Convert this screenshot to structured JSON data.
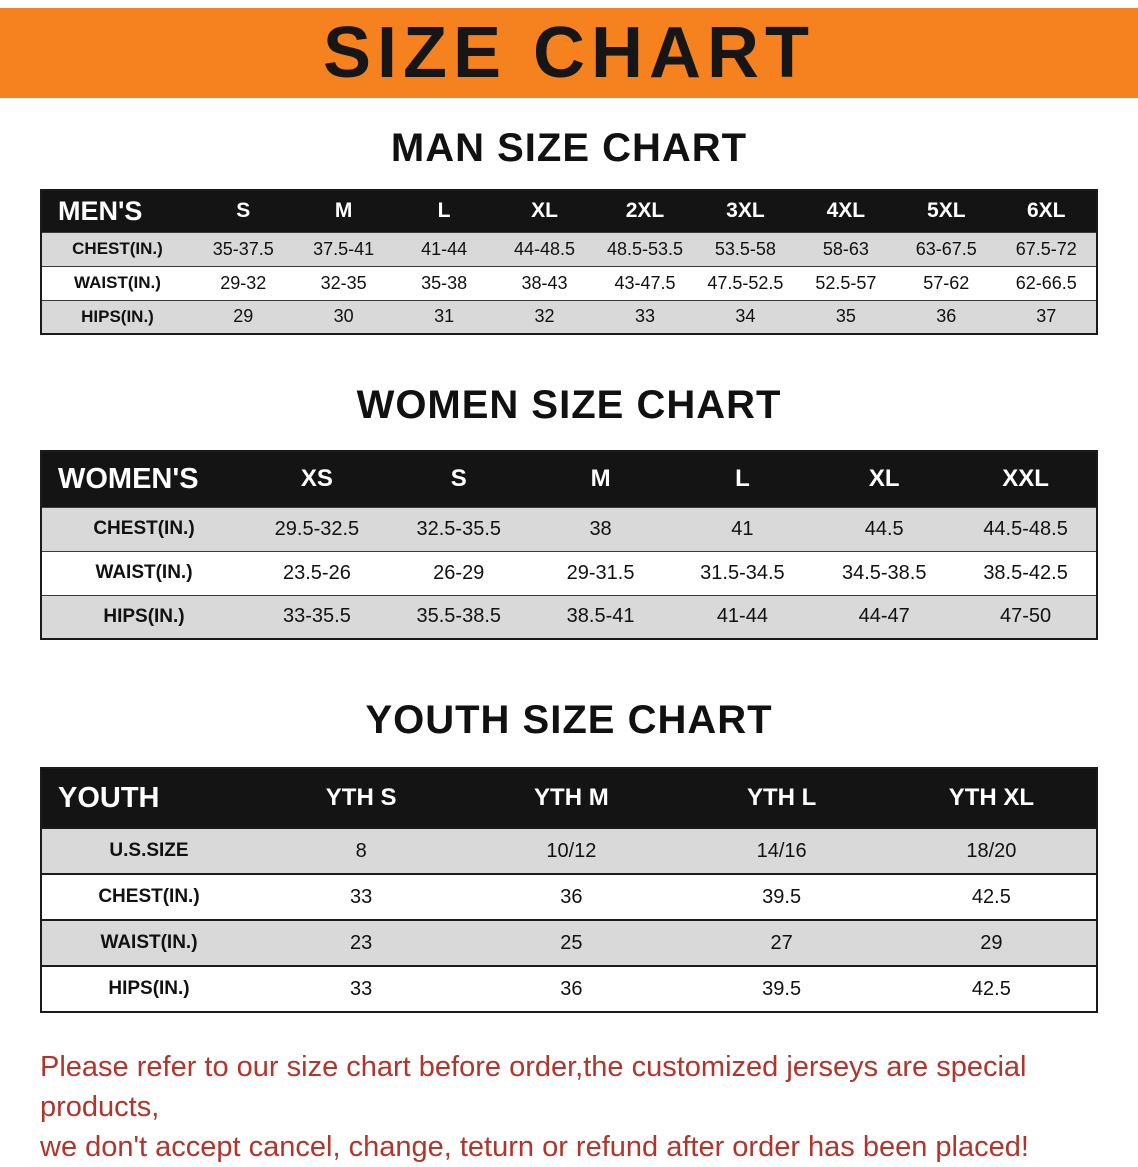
{
  "banner": {
    "title": "SIZE CHART"
  },
  "colors": {
    "banner_orange": "#F5821F",
    "table_header_black": "#141414",
    "row_gray": "#D9D9D9",
    "note_red": "#B2342B"
  },
  "sections": {
    "men": {
      "heading": "MAN SIZE CHART",
      "table": {
        "label": "MEN'S",
        "columns": [
          "S",
          "M",
          "L",
          "XL",
          "2XL",
          "3XL",
          "4XL",
          "5XL",
          "6XL"
        ],
        "rows": [
          {
            "label": "CHEST(IN.)",
            "values": [
              "35-37.5",
              "37.5-41",
              "41-44",
              "44-48.5",
              "48.5-53.5",
              "53.5-58",
              "58-63",
              "63-67.5",
              "67.5-72"
            ]
          },
          {
            "label": "WAIST(IN.)",
            "values": [
              "29-32",
              "32-35",
              "35-38",
              "38-43",
              "43-47.5",
              "47.5-52.5",
              "52.5-57",
              "57-62",
              "62-66.5"
            ]
          },
          {
            "label": "HIPS(IN.)",
            "values": [
              "29",
              "30",
              "31",
              "32",
              "33",
              "34",
              "35",
              "36",
              "37"
            ]
          }
        ]
      }
    },
    "women": {
      "heading": "WOMEN SIZE CHART",
      "table": {
        "label": "WOMEN'S",
        "columns": [
          "XS",
          "S",
          "M",
          "L",
          "XL",
          "XXL"
        ],
        "rows": [
          {
            "label": "CHEST(IN.)",
            "values": [
              "29.5-32.5",
              "32.5-35.5",
              "38",
              "41",
              "44.5",
              "44.5-48.5"
            ]
          },
          {
            "label": "WAIST(IN.)",
            "values": [
              "23.5-26",
              "26-29",
              "29-31.5",
              "31.5-34.5",
              "34.5-38.5",
              "38.5-42.5"
            ]
          },
          {
            "label": "HIPS(IN.)",
            "values": [
              "33-35.5",
              "35.5-38.5",
              "38.5-41",
              "41-44",
              "44-47",
              "47-50"
            ]
          }
        ]
      }
    },
    "youth": {
      "heading": "YOUTH SIZE CHART",
      "table": {
        "label": "YOUTH",
        "columns": [
          "YTH S",
          "YTH M",
          "YTH L",
          "YTH XL"
        ],
        "rows": [
          {
            "label": "U.S.SIZE",
            "values": [
              "8",
              "10/12",
              "14/16",
              "18/20"
            ]
          },
          {
            "label": "CHEST(IN.)",
            "values": [
              "33",
              "36",
              "39.5",
              "42.5"
            ]
          },
          {
            "label": "WAIST(IN.)",
            "values": [
              "23",
              "25",
              "27",
              "29"
            ]
          },
          {
            "label": "HIPS(IN.)",
            "values": [
              "33",
              "36",
              "39.5",
              "42.5"
            ]
          }
        ]
      }
    }
  },
  "note": {
    "line1": "Please refer to our size chart before order,the customized jerseys are special products,",
    "line2": "we don't accept cancel, change, teturn or refund after order has been placed!"
  }
}
